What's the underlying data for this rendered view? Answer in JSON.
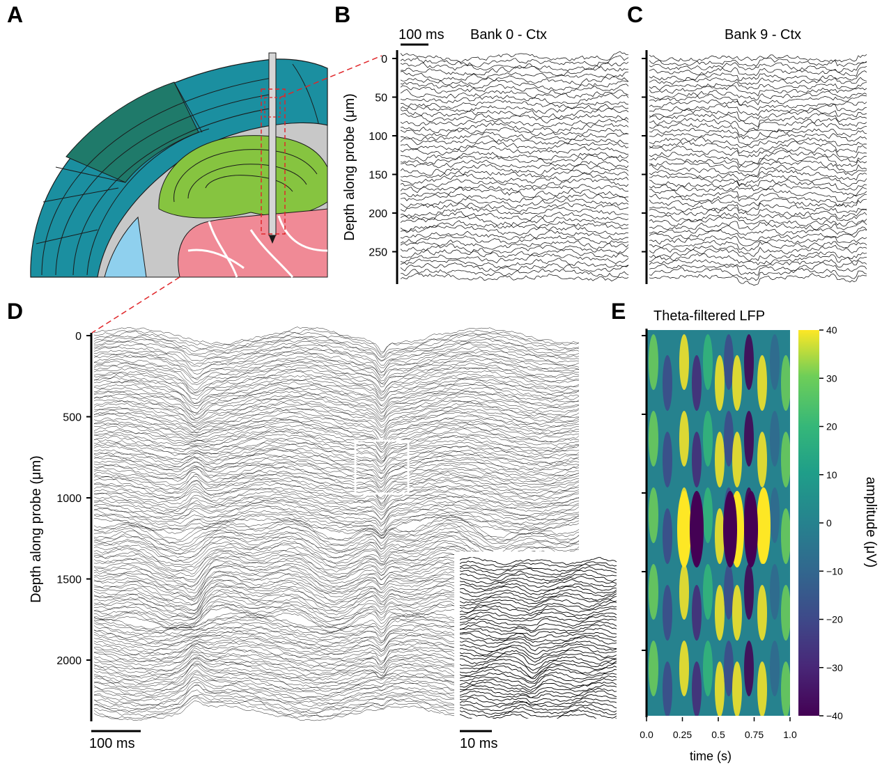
{
  "panels": {
    "A": {
      "label": "A"
    },
    "B": {
      "label": "B",
      "title": "Bank 0 - Ctx",
      "scalebar": "100 ms",
      "ylabel": "Depth along probe (μm)",
      "yticks": [
        "0",
        "50",
        "100",
        "150",
        "200",
        "250"
      ]
    },
    "C": {
      "label": "C",
      "title": "Bank 9 - Ctx"
    },
    "D": {
      "label": "D",
      "ylabel": "Depth along probe (μm)",
      "yticks": [
        "0",
        "500",
        "1000",
        "1500",
        "2000"
      ],
      "scalebar": "100 ms",
      "inset_scalebar": "10 ms"
    },
    "E": {
      "label": "E",
      "title": "Theta-filtered LFP",
      "xlabel": "time (s)",
      "xticks": [
        "0.0",
        "0.25",
        "0.5",
        "0.75",
        "1.0"
      ],
      "colorbar_label": "amplitude (μV)",
      "colorbar_ticks": [
        "40",
        "30",
        "20",
        "10",
        "0",
        "−10",
        "−20",
        "−30",
        "−40"
      ]
    }
  },
  "colors": {
    "cortex_dark": "#1f7a6a",
    "cortex_blue": "#1b8fa0",
    "hippocampus_green": "#86c440",
    "thalamus_pink": "#f08a96",
    "ventricle_blue": "#8fd0ee",
    "white_matter": "#c8c8c8",
    "probe_box": "#e0262a"
  },
  "chart_data": [
    {
      "type": "line",
      "panel": "B",
      "title": "Bank 0 - Ctx",
      "ylabel": "Depth along probe (μm)",
      "ylim": [
        0,
        290
      ],
      "yticks": [
        0,
        50,
        100,
        150,
        200,
        250
      ],
      "scalebar": "100 ms"
    },
    {
      "type": "line",
      "panel": "C",
      "title": "Bank 9 - Ctx"
    },
    {
      "type": "line",
      "panel": "D",
      "ylabel": "Depth along probe (μm)",
      "ylim": [
        0,
        2400
      ],
      "yticks": [
        0,
        500,
        1000,
        1500,
        2000
      ],
      "scalebar": "100 ms",
      "inset_scalebar": "10 ms"
    },
    {
      "type": "heatmap",
      "panel": "E",
      "title": "Theta-filtered LFP",
      "xlabel": "time (s)",
      "xlim": [
        0.0,
        1.0
      ],
      "xticks": [
        0.0,
        0.25,
        0.5,
        0.75,
        1.0
      ],
      "colorbar_label": "amplitude (μV)",
      "clim": [
        -40,
        40
      ],
      "colorbar_ticks": [
        40,
        30,
        20,
        10,
        0,
        -10,
        -20,
        -30,
        -40
      ],
      "colormap": "viridis"
    }
  ]
}
